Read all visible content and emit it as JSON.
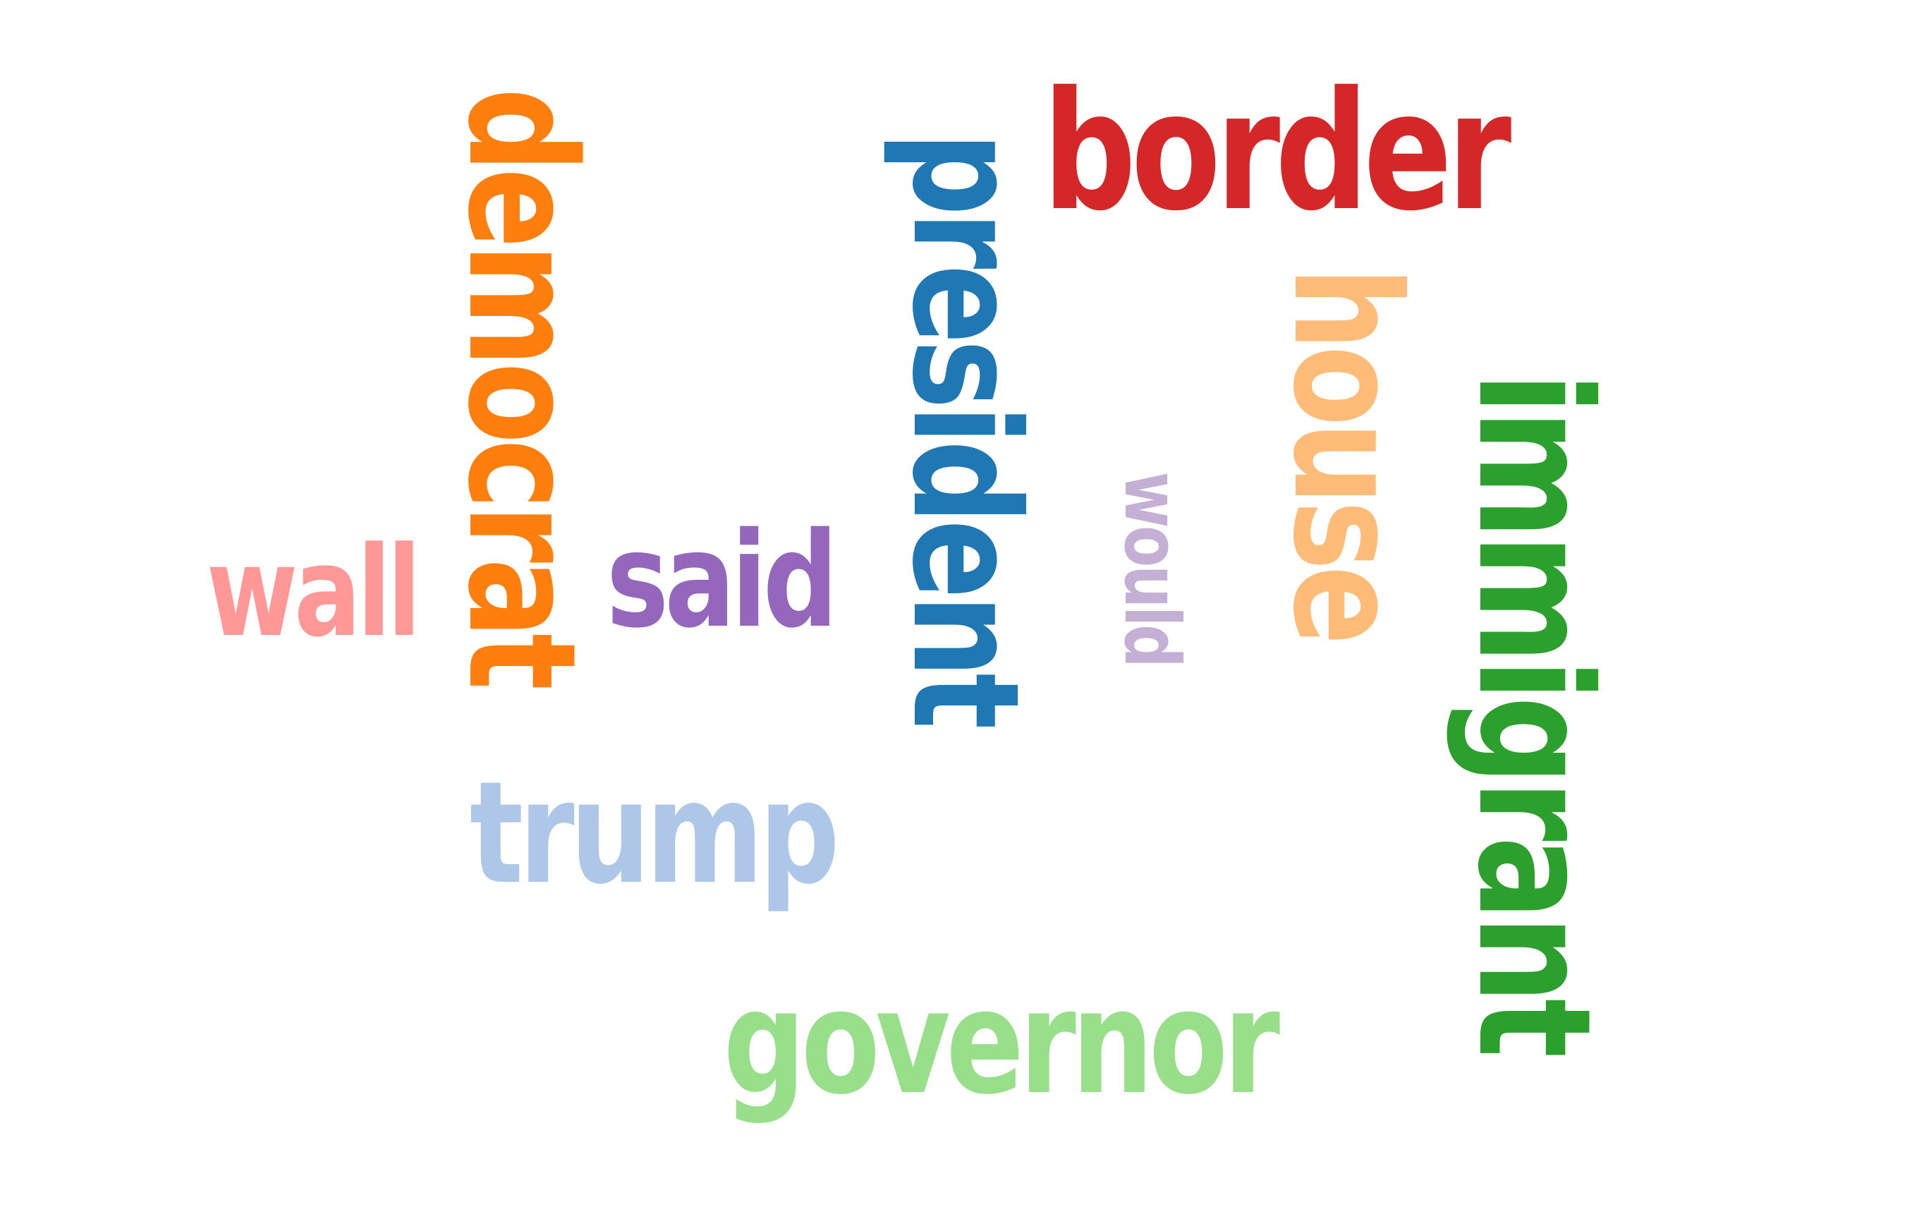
{
  "words": [
    {
      "text": "democrat",
      "color": "#ff7f0e",
      "orientation": "vertical"
    },
    {
      "text": "president",
      "color": "#1f77b4",
      "orientation": "vertical"
    },
    {
      "text": "border",
      "color": "#d62728",
      "orientation": "horizontal"
    },
    {
      "text": "house",
      "color": "#ffbb78",
      "orientation": "vertical"
    },
    {
      "text": "immigrant",
      "color": "#2ca02c",
      "orientation": "vertical"
    },
    {
      "text": "would",
      "color": "#c5b0d5",
      "orientation": "vertical"
    },
    {
      "text": "said",
      "color": "#9467bd",
      "orientation": "horizontal"
    },
    {
      "text": "wall",
      "color": "#ff9896",
      "orientation": "horizontal"
    },
    {
      "text": "trump",
      "color": "#aec7e8",
      "orientation": "horizontal"
    },
    {
      "text": "governor",
      "color": "#98df8a",
      "orientation": "horizontal"
    }
  ]
}
